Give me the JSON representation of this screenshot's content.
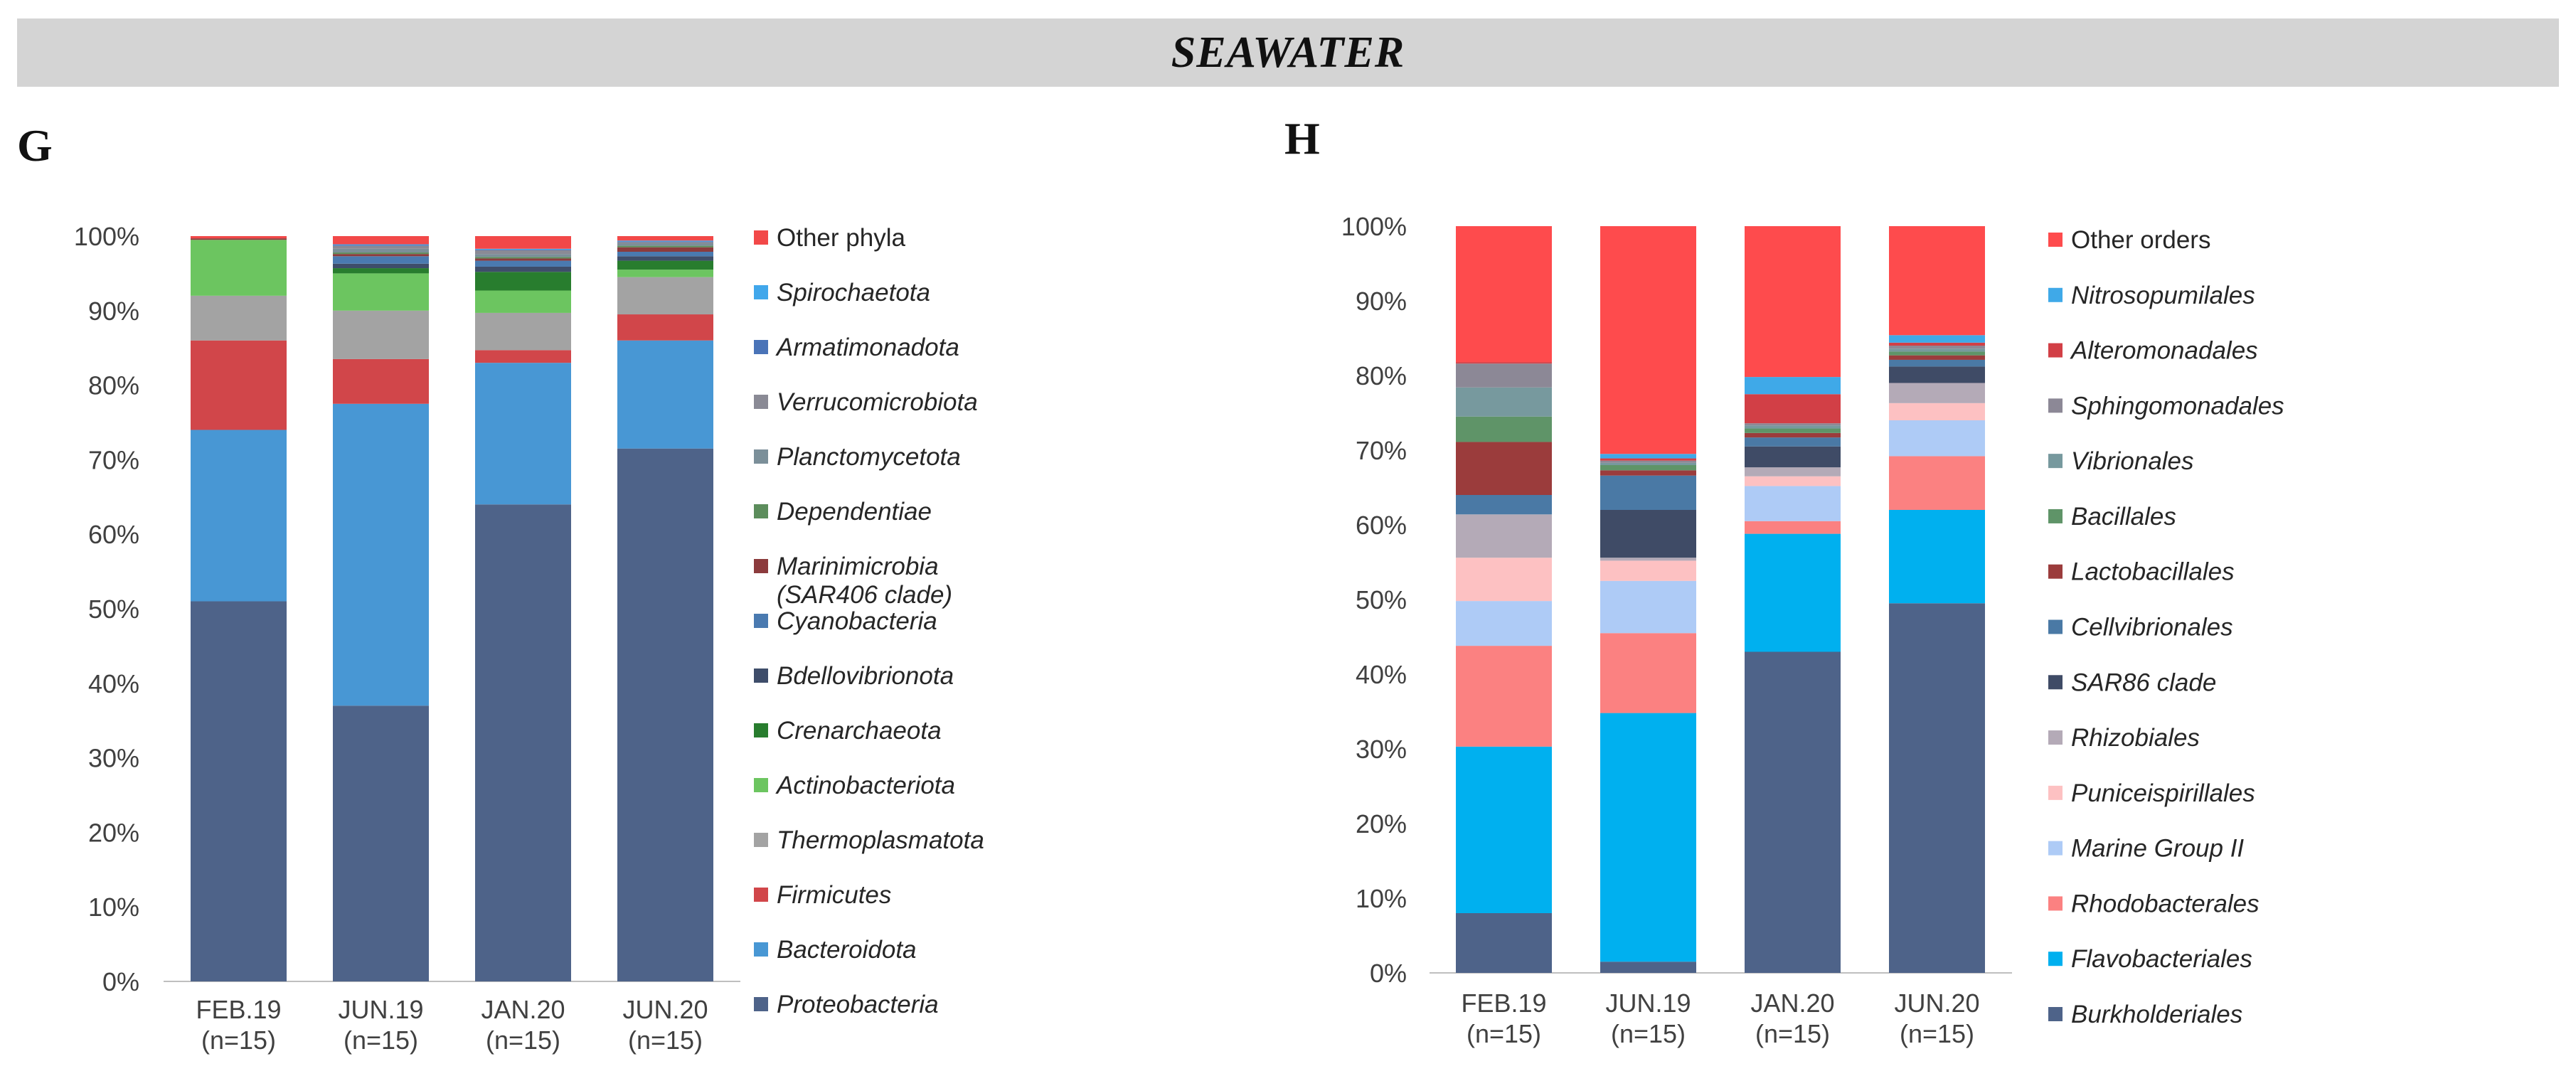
{
  "banner": {
    "title": "SEAWATER"
  },
  "panels": {
    "g_label": "G",
    "h_label": "H"
  },
  "chart_data": [
    {
      "id": "G",
      "type": "bar",
      "stacked": true,
      "title": "",
      "xlabel": "",
      "ylabel": "",
      "ylim": [
        0,
        100
      ],
      "y_tick_values": [
        0,
        10,
        20,
        30,
        40,
        50,
        60,
        70,
        80,
        90,
        100
      ],
      "y_tick_labels": [
        "0%",
        "10%",
        "20%",
        "30%",
        "40%",
        "50%",
        "60%",
        "70%",
        "80%",
        "90%",
        "100%"
      ],
      "categories": [
        {
          "label": "FEB.19",
          "sub": "(n=15)"
        },
        {
          "label": "JUN.19",
          "sub": "(n=15)"
        },
        {
          "label": "JAN.20",
          "sub": "(n=15)"
        },
        {
          "label": "JUN.20",
          "sub": "(n=15)"
        }
      ],
      "legend_position": "right",
      "series": [
        {
          "name": "Proteobacteria",
          "color": "#4e6389",
          "values": [
            51,
            37,
            64,
            71.5
          ]
        },
        {
          "name": "Bacteroidota",
          "color": "#4897d4",
          "values": [
            23,
            40.5,
            19,
            14.5
          ]
        },
        {
          "name": "Firmicutes",
          "color": "#d1464a",
          "values": [
            12,
            6,
            1.7,
            3.5
          ]
        },
        {
          "name": "Thermoplasmatota",
          "color": "#a3a3a3",
          "values": [
            6,
            6.5,
            5,
            5
          ]
        },
        {
          "name": "Actinobacteriota",
          "color": "#6cc560",
          "values": [
            7.5,
            5,
            3,
            1
          ]
        },
        {
          "name": "Crenarchaeota",
          "color": "#287d2e",
          "values": [
            0,
            0.7,
            2.5,
            1.2
          ]
        },
        {
          "name": "Bdellovibrionota",
          "color": "#3e4d6a",
          "values": [
            0,
            0.6,
            0.7,
            0.6
          ]
        },
        {
          "name": "Cyanobacteria",
          "color": "#4a7ab0",
          "values": [
            0,
            1,
            0.8,
            0.6
          ]
        },
        {
          "name": "Marinimicrobia (SAR406 clade)",
          "color": "#8c3b3d",
          "values": [
            0.2,
            0.3,
            0.3,
            0.6
          ]
        },
        {
          "name": "Dependentiae",
          "color": "#5c8d5c",
          "values": [
            0,
            0.2,
            0.2,
            0.2
          ]
        },
        {
          "name": "Planctomycetota",
          "color": "#7b8f99",
          "values": [
            0,
            0.5,
            0.4,
            0.3
          ]
        },
        {
          "name": "Verrucomicrobiota",
          "color": "#8a8a95",
          "values": [
            0,
            0.4,
            0.5,
            0.2
          ]
        },
        {
          "name": "Armatimonadota",
          "color": "#4a74b8",
          "values": [
            0,
            0.1,
            0.1,
            0.1
          ]
        },
        {
          "name": "Spirochaetota",
          "color": "#41a7eb",
          "values": [
            0,
            0.1,
            0.1,
            0.1
          ]
        },
        {
          "name": "Other phyla",
          "color": "#f24848",
          "values": [
            0.3,
            1.1,
            1.7,
            0.6
          ]
        }
      ]
    },
    {
      "id": "H",
      "type": "bar",
      "stacked": true,
      "title": "",
      "xlabel": "",
      "ylabel": "",
      "ylim": [
        0,
        100
      ],
      "y_tick_values": [
        0,
        10,
        20,
        30,
        40,
        50,
        60,
        70,
        80,
        90,
        100
      ],
      "y_tick_labels": [
        "0%",
        "10%",
        "20%",
        "30%",
        "40%",
        "50%",
        "60%",
        "70%",
        "80%",
        "90%",
        "100%"
      ],
      "categories": [
        {
          "label": "FEB.19",
          "sub": "(n=15)"
        },
        {
          "label": "JUN.19",
          "sub": "(n=15)"
        },
        {
          "label": "JAN.20",
          "sub": "(n=15)"
        },
        {
          "label": "JUN.20",
          "sub": "(n=15)"
        }
      ],
      "legend_position": "right",
      "series": [
        {
          "name": "Burkholderiales",
          "color": "#4e6389",
          "values": [
            8,
            1.5,
            43,
            49.5
          ]
        },
        {
          "name": "Flavobacteriales",
          "color": "#00b0ef",
          "values": [
            22.3,
            33.3,
            15.8,
            12.5
          ]
        },
        {
          "name": "Rhodobacterales",
          "color": "#fb8181",
          "values": [
            13.5,
            10.7,
            1.7,
            7.2
          ]
        },
        {
          "name": "Marine Group II",
          "color": "#aecbf6",
          "values": [
            6,
            7,
            4.7,
            4.8
          ]
        },
        {
          "name": "Puniceispirillales",
          "color": "#fdc1c2",
          "values": [
            5.8,
            2.7,
            1.3,
            2.3
          ]
        },
        {
          "name": "Rhizobiales",
          "color": "#b4aab7",
          "values": [
            5.8,
            0.4,
            1.2,
            2.7
          ]
        },
        {
          "name": "SAR86 clade",
          "color": "#3f4b66",
          "values": [
            0,
            6.4,
            2.8,
            2.2
          ]
        },
        {
          "name": "Cellvibrionales",
          "color": "#4a79a5",
          "values": [
            2.6,
            4.6,
            1.2,
            0.9
          ]
        },
        {
          "name": "Lactobacillales",
          "color": "#9b3c3c",
          "values": [
            7.1,
            0.7,
            0.6,
            0.6
          ]
        },
        {
          "name": "Bacillales",
          "color": "#5f9468",
          "values": [
            3.4,
            0.7,
            0.6,
            0.5
          ]
        },
        {
          "name": "Vibrionales",
          "color": "#77999e",
          "values": [
            3.9,
            0.3,
            0.4,
            0.4
          ]
        },
        {
          "name": "Sphingomonadales",
          "color": "#8c8896",
          "values": [
            3.2,
            0.3,
            0.3,
            0.4
          ]
        },
        {
          "name": "Alteromonadales",
          "color": "#d23f46",
          "values": [
            0.2,
            0.3,
            3.9,
            0.4
          ]
        },
        {
          "name": "Nitrosopumilales",
          "color": "#3fa9e8",
          "values": [
            0,
            0.6,
            2.3,
            1
          ]
        },
        {
          "name": "Other orders",
          "color": "#fe4b4d",
          "values": [
            18.2,
            30.5,
            20.2,
            14.6
          ]
        }
      ]
    }
  ]
}
